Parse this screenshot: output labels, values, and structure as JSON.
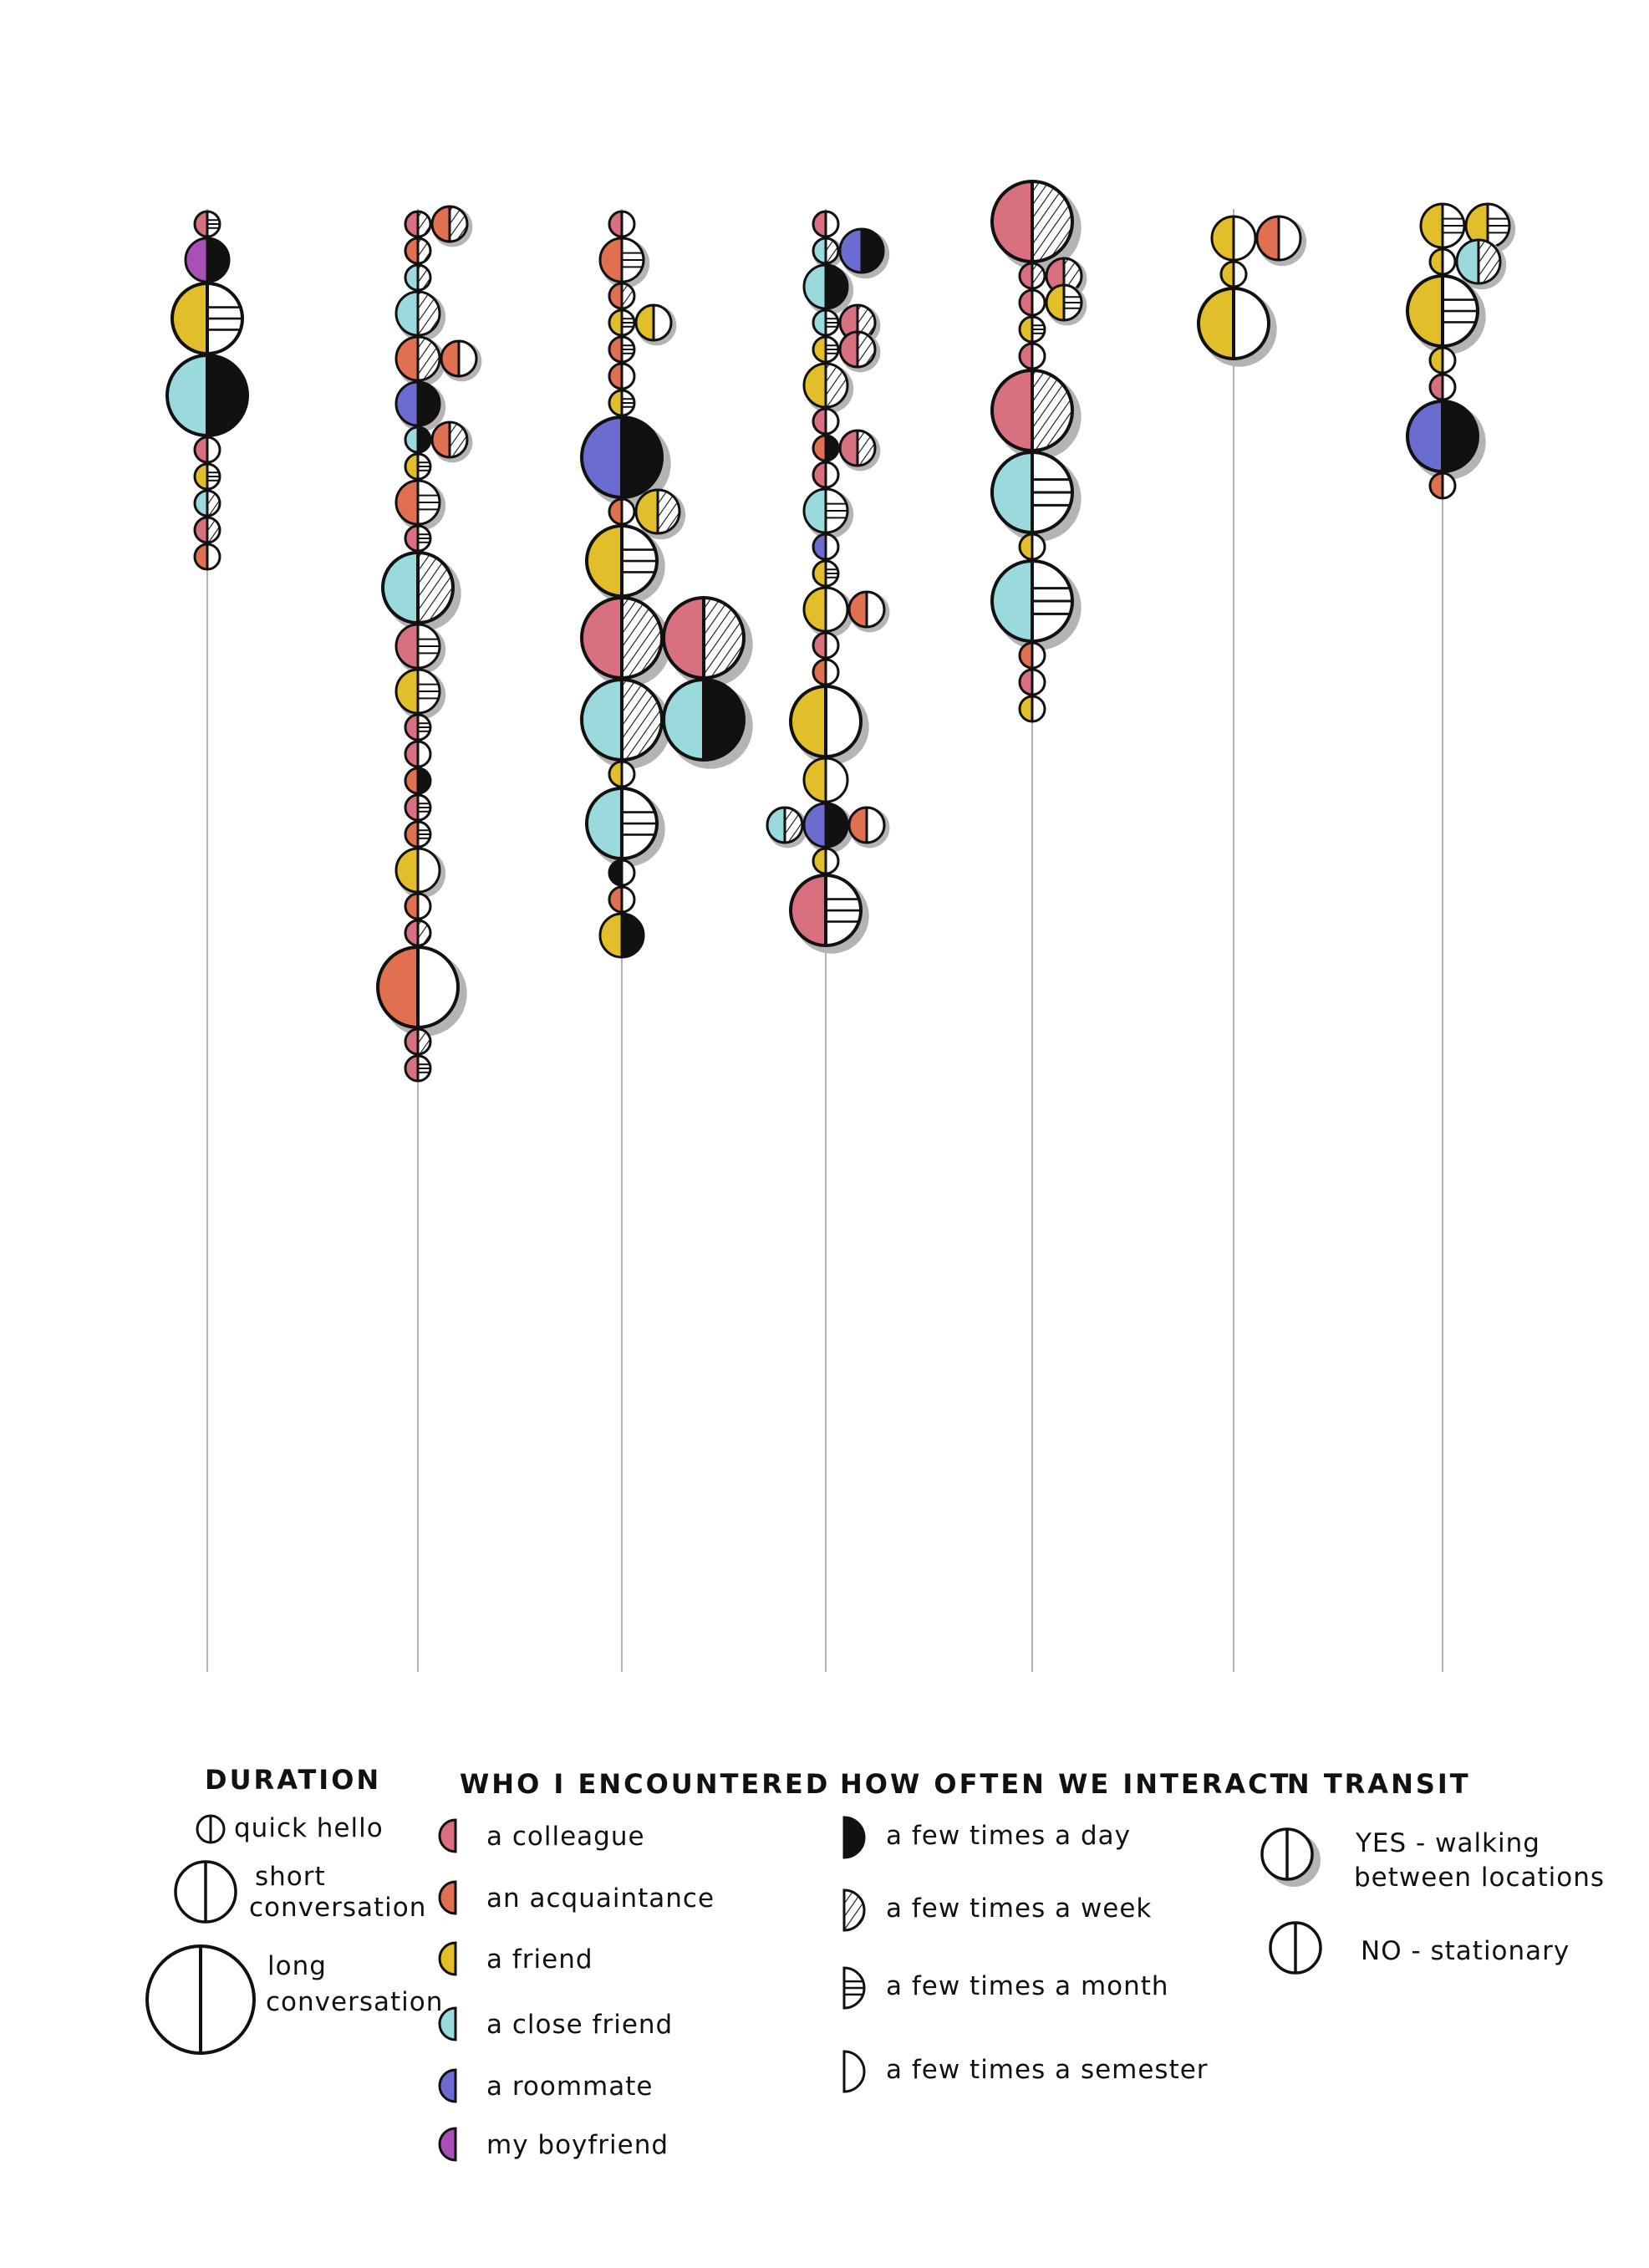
{
  "palette": {
    "colleague": "#d9707f",
    "acquaintance": "#e0704f",
    "friend": "#e2bf2a",
    "close_friend": "#9ad9dc",
    "roommate": "#6b6ccf",
    "boyfriend": "#a84fb8",
    "ink": "#111111",
    "shadow": "#b4b4b4",
    "line": "#9a9a9a"
  },
  "legend": {
    "duration": {
      "title": "DURATION",
      "items": [
        {
          "key": "quick",
          "label": "quick hello"
        },
        {
          "key": "short",
          "label_lines": [
            "short",
            "conversation"
          ]
        },
        {
          "key": "long",
          "label_lines": [
            "long",
            "conversation"
          ]
        }
      ]
    },
    "who": {
      "title": "WHO I ENCOUNTERED",
      "items": [
        {
          "key": "colleague",
          "label": "a colleague"
        },
        {
          "key": "acquaintance",
          "label": "an acquaintance"
        },
        {
          "key": "friend",
          "label": "a friend"
        },
        {
          "key": "close_friend",
          "label": "a close friend"
        },
        {
          "key": "roommate",
          "label": "a roommate"
        },
        {
          "key": "boyfriend",
          "label": "my boyfriend"
        }
      ]
    },
    "frequency": {
      "title": "HOW OFTEN WE INTERACT",
      "items": [
        {
          "key": "day",
          "label": "a few times a day"
        },
        {
          "key": "week",
          "label": "a few times a week"
        },
        {
          "key": "month",
          "label": "a few times a month"
        },
        {
          "key": "semester",
          "label": "a few times a semester"
        }
      ]
    },
    "transit": {
      "title": "IN TRANSIT",
      "items": [
        {
          "key": "yes",
          "label_lines": [
            "YES - walking",
            "between locations"
          ]
        },
        {
          "key": "no",
          "label": "NO - stationary"
        }
      ]
    }
  },
  "columns": [
    {
      "beads": [
        {
          "s": "q",
          "w": "colleague",
          "f": "month",
          "t": false
        },
        {
          "s": "s",
          "w": "boyfriend",
          "f": "day",
          "t": false
        },
        {
          "s": "l",
          "w": "friend",
          "f": "month",
          "t": false
        },
        {
          "s": "L",
          "w": "close_friend",
          "f": "day",
          "t": false
        },
        {
          "s": "q",
          "w": "colleague",
          "f": "semester",
          "t": false
        },
        {
          "s": "q",
          "w": "friend",
          "f": "month",
          "t": false
        },
        {
          "s": "q",
          "w": "close_friend",
          "f": "week",
          "t": false
        },
        {
          "s": "q",
          "w": "colleague",
          "f": "week",
          "t": false
        },
        {
          "s": "q",
          "w": "acquaintance",
          "f": "semester",
          "t": false
        }
      ]
    },
    {
      "beads": [
        {
          "s": "q",
          "w": "colleague",
          "f": "week",
          "t": false,
          "side": {
            "w": "acquaintance",
            "f": "week"
          }
        },
        {
          "s": "q",
          "w": "acquaintance",
          "f": "week",
          "t": false
        },
        {
          "s": "q",
          "w": "close_friend",
          "f": "week",
          "t": false
        },
        {
          "s": "s",
          "w": "close_friend",
          "f": "week",
          "t": true
        },
        {
          "s": "s",
          "w": "acquaintance",
          "f": "week",
          "t": true,
          "side": {
            "w": "acquaintance",
            "f": "semester"
          }
        },
        {
          "s": "s",
          "w": "roommate",
          "f": "day",
          "t": true
        },
        {
          "s": "q",
          "w": "close_friend",
          "f": "day",
          "t": false,
          "side": {
            "w": "acquaintance",
            "f": "week"
          }
        },
        {
          "s": "q",
          "w": "friend",
          "f": "month",
          "t": false
        },
        {
          "s": "s",
          "w": "acquaintance",
          "f": "month",
          "t": true
        },
        {
          "s": "q",
          "w": "colleague",
          "f": "month",
          "t": false
        },
        {
          "s": "l",
          "w": "close_friend",
          "f": "week",
          "t": true
        },
        {
          "s": "s",
          "w": "colleague",
          "f": "month",
          "t": true
        },
        {
          "s": "s",
          "w": "friend",
          "f": "month",
          "t": true
        },
        {
          "s": "q",
          "w": "colleague",
          "f": "month",
          "t": false
        },
        {
          "s": "q",
          "w": "colleague",
          "f": "semester",
          "t": false
        },
        {
          "s": "q",
          "w": "acquaintance",
          "f": "day",
          "t": false
        },
        {
          "s": "q",
          "w": "colleague",
          "f": "month",
          "t": false
        },
        {
          "s": "q",
          "w": "acquaintance",
          "f": "month",
          "t": false
        },
        {
          "s": "s",
          "w": "friend",
          "f": "semester",
          "t": true
        },
        {
          "s": "q",
          "w": "acquaintance",
          "f": "semester",
          "t": false
        },
        {
          "s": "q",
          "w": "colleague",
          "f": "week",
          "t": false
        },
        {
          "s": "L",
          "w": "acquaintance",
          "f": "semester",
          "t": true
        },
        {
          "s": "q",
          "w": "colleague",
          "f": "week",
          "t": false
        },
        {
          "s": "q",
          "w": "colleague",
          "f": "month",
          "t": false
        }
      ]
    },
    {
      "beads": [
        {
          "s": "q",
          "w": "colleague",
          "f": "semester",
          "t": false
        },
        {
          "s": "s",
          "w": "acquaintance",
          "f": "month",
          "t": true
        },
        {
          "s": "q",
          "w": "acquaintance",
          "f": "week",
          "t": false
        },
        {
          "s": "q",
          "w": "friend",
          "f": "month",
          "t": false,
          "side": {
            "w": "friend",
            "f": "semester"
          }
        },
        {
          "s": "q",
          "w": "acquaintance",
          "f": "month",
          "t": false
        },
        {
          "s": "q",
          "w": "acquaintance",
          "f": "semester",
          "t": false
        },
        {
          "s": "q",
          "w": "friend",
          "f": "month",
          "t": false
        },
        {
          "s": "L",
          "w": "roommate",
          "f": "day",
          "t": true
        },
        {
          "s": "q",
          "w": "acquaintance",
          "f": "semester",
          "t": false,
          "side": {
            "w": "friend",
            "f": "week",
            "sz": "s"
          }
        },
        {
          "s": "l",
          "w": "friend",
          "f": "month",
          "t": true
        },
        {
          "s": "L",
          "w": "colleague",
          "f": "week",
          "t": true,
          "side": {
            "w": "colleague",
            "f": "week",
            "sz": "L"
          }
        },
        {
          "s": "L",
          "w": "close_friend",
          "f": "week",
          "t": true,
          "side": {
            "w": "close_friend",
            "f": "day",
            "sz": "L"
          }
        },
        {
          "s": "q",
          "w": "friend",
          "f": "semester",
          "t": false
        },
        {
          "s": "l",
          "w": "close_friend",
          "f": "month",
          "t": true
        },
        {
          "s": "q",
          "w": "ink",
          "f": "semester",
          "t": false
        },
        {
          "s": "q",
          "w": "acquaintance",
          "f": "semester",
          "t": false
        },
        {
          "s": "s",
          "w": "friend",
          "f": "day",
          "t": false
        }
      ]
    },
    {
      "beads": [
        {
          "s": "q",
          "w": "colleague",
          "f": "semester",
          "t": false
        },
        {
          "s": "q",
          "w": "close_friend",
          "f": "week",
          "t": true,
          "side": {
            "w": "roommate",
            "f": "day",
            "sz": "s"
          }
        },
        {
          "s": "s",
          "w": "close_friend",
          "f": "day",
          "t": true
        },
        {
          "s": "q",
          "w": "close_friend",
          "f": "month",
          "t": false,
          "side": {
            "w": "colleague",
            "f": "week"
          }
        },
        {
          "s": "q",
          "w": "friend",
          "f": "month",
          "t": false,
          "side": {
            "w": "colleague",
            "f": "week"
          }
        },
        {
          "s": "s",
          "w": "friend",
          "f": "week",
          "t": true
        },
        {
          "s": "q",
          "w": "colleague",
          "f": "semester",
          "t": false
        },
        {
          "s": "q",
          "w": "acquaintance",
          "f": "day",
          "t": false,
          "side": {
            "w": "colleague",
            "f": "week"
          }
        },
        {
          "s": "q",
          "w": "colleague",
          "f": "semester",
          "t": false
        },
        {
          "s": "s",
          "w": "close_friend",
          "f": "month",
          "t": true
        },
        {
          "s": "q",
          "w": "roommate",
          "f": "semester",
          "t": false
        },
        {
          "s": "q",
          "w": "friend",
          "f": "month",
          "t": false
        },
        {
          "s": "s",
          "w": "friend",
          "f": "semester",
          "t": true,
          "side": {
            "w": "acquaintance",
            "f": "semester"
          }
        },
        {
          "s": "q",
          "w": "colleague",
          "f": "semester",
          "t": false
        },
        {
          "s": "q",
          "w": "acquaintance",
          "f": "semester",
          "t": false
        },
        {
          "s": "l",
          "w": "friend",
          "f": "semester",
          "t": true
        },
        {
          "s": "s",
          "w": "friend",
          "f": "semester",
          "t": false
        },
        {
          "s": "s",
          "w": "roommate",
          "f": "day",
          "t": true,
          "left": {
            "w": "close_friend",
            "f": "week"
          },
          "side": {
            "w": "acquaintance",
            "f": "semester"
          }
        },
        {
          "s": "q",
          "w": "friend",
          "f": "semester",
          "t": false
        },
        {
          "s": "l",
          "w": "colleague",
          "f": "month",
          "t": true
        }
      ]
    },
    {
      "beads": [
        {
          "s": "L",
          "w": "colleague",
          "f": "week",
          "t": true
        },
        {
          "s": "q",
          "w": "colleague",
          "f": "week",
          "t": false,
          "side": {
            "w": "colleague",
            "f": "week"
          }
        },
        {
          "s": "q",
          "w": "colleague",
          "f": "semester",
          "t": false,
          "side": {
            "w": "friend",
            "f": "month"
          }
        },
        {
          "s": "q",
          "w": "friend",
          "f": "month",
          "t": false
        },
        {
          "s": "q",
          "w": "colleague",
          "f": "semester",
          "t": false
        },
        {
          "s": "L",
          "w": "colleague",
          "f": "week",
          "t": true
        },
        {
          "s": "L",
          "w": "close_friend",
          "f": "month",
          "t": true
        },
        {
          "s": "q",
          "w": "friend",
          "f": "semester",
          "t": false
        },
        {
          "s": "L",
          "w": "close_friend",
          "f": "month",
          "t": true
        },
        {
          "s": "q",
          "w": "acquaintance",
          "f": "semester",
          "t": false
        },
        {
          "s": "q",
          "w": "colleague",
          "f": "semester",
          "t": false
        },
        {
          "s": "q",
          "w": "friend",
          "f": "semester",
          "t": false
        }
      ]
    },
    {
      "beads": [
        {
          "s": "s",
          "w": "friend",
          "f": "semester",
          "t": false,
          "side": {
            "w": "acquaintance",
            "f": "semester",
            "sz": "s"
          }
        },
        {
          "s": "q",
          "w": "friend",
          "f": "semester",
          "t": false
        },
        {
          "s": "l",
          "w": "friend",
          "f": "semester",
          "t": true
        }
      ]
    },
    {
      "beads": [
        {
          "s": "s",
          "w": "friend",
          "f": "month",
          "t": false,
          "side": {
            "w": "friend",
            "f": "month",
            "sz": "s"
          }
        },
        {
          "s": "q",
          "w": "friend",
          "f": "semester",
          "t": false,
          "side": {
            "w": "close_friend",
            "f": "week",
            "sz": "s"
          }
        },
        {
          "s": "l",
          "w": "friend",
          "f": "month",
          "t": true
        },
        {
          "s": "q",
          "w": "friend",
          "f": "semester",
          "t": false
        },
        {
          "s": "q",
          "w": "colleague",
          "f": "semester",
          "t": false
        },
        {
          "s": "l",
          "w": "roommate",
          "f": "day",
          "t": true
        },
        {
          "s": "q",
          "w": "acquaintance",
          "f": "semester",
          "t": false
        }
      ]
    }
  ]
}
